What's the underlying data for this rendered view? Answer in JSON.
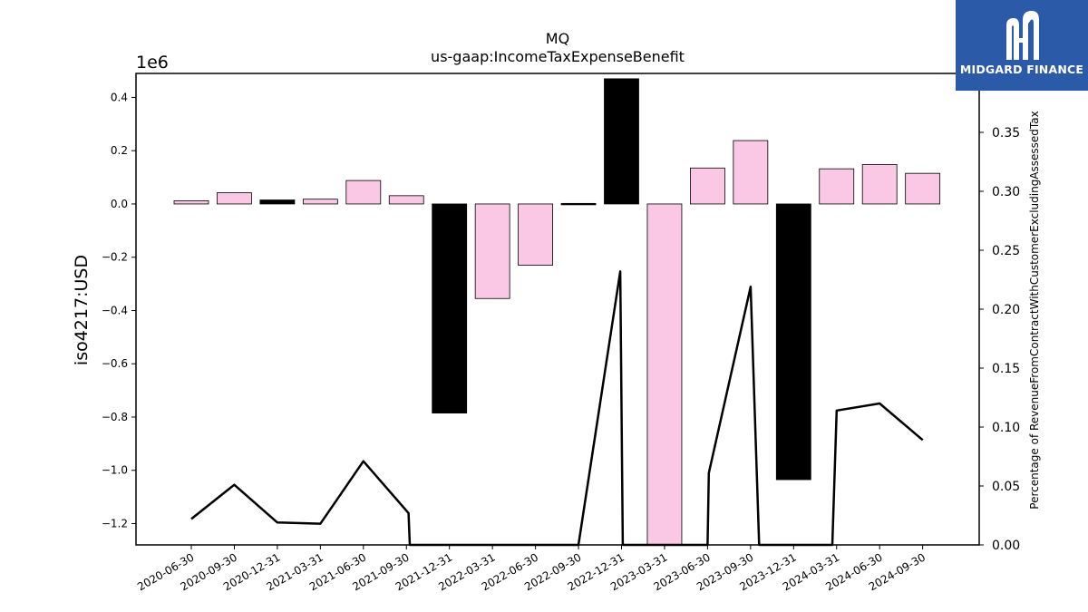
{
  "chart_data": {
    "type": "bar",
    "title": "MQ",
    "subtitle": "us-gaap:IncomeTaxExpenseBenefit",
    "ylabel": "iso4217:USD",
    "y_offset_label": "1e6",
    "y2label": "Percentage of RevenueFromContractWithCustomerExcludingAssessedTax",
    "ylim": [
      -1280000,
      490000
    ],
    "y2lim": [
      0,
      0.4
    ],
    "y_ticks": [
      0.4,
      0.2,
      0.0,
      -0.2,
      -0.4,
      -0.6,
      -0.8,
      -1.0,
      -1.2
    ],
    "y_tick_labels": [
      "0.4",
      "0.2",
      "0.0",
      "−0.2",
      "−0.4",
      "−0.6",
      "−0.8",
      "−1.0",
      "−1.2"
    ],
    "y2_ticks": [
      0.35,
      0.3,
      0.25,
      0.2,
      0.15,
      0.1,
      0.05,
      0.0
    ],
    "y2_tick_labels": [
      "0.35",
      "0.30",
      "0.25",
      "0.20",
      "0.15",
      "0.10",
      "0.05",
      "0.00"
    ],
    "categories": [
      "2020-06-30",
      "2020-09-30",
      "2020-12-31",
      "2021-03-31",
      "2021-06-30",
      "2021-09-30",
      "2021-12-31",
      "2022-03-31",
      "2022-06-30",
      "2022-09-30",
      "2022-12-31",
      "2023-03-31",
      "2023-06-30",
      "2023-09-30",
      "2023-12-31",
      "2024-03-31",
      "2024-06-30",
      "2024-09-30"
    ],
    "series": [
      {
        "type": "bar",
        "values": [
          12000,
          42000,
          15000,
          18000,
          88000,
          31000,
          -785000,
          -355000,
          -230000,
          2000,
          470000,
          -1290000,
          135000,
          238000,
          -1035000,
          132000,
          148000,
          115000
        ],
        "fill": [
          "#fac8e4",
          "#fac8e4",
          "#000000",
          "#fac8e4",
          "#fac8e4",
          "#fac8e4",
          "#000000",
          "#fac8e4",
          "#fac8e4",
          "#000000",
          "#000000",
          "#fac8e4",
          "#fac8e4",
          "#fac8e4",
          "#000000",
          "#fac8e4",
          "#fac8e4",
          "#fac8e4"
        ]
      },
      {
        "type": "line",
        "axis": "right",
        "color": "#000000",
        "x_index": [
          0,
          1,
          2,
          3,
          4,
          5.05,
          5.08,
          9.0,
          9.97,
          10.03,
          12.0,
          12.03,
          13.0,
          13.2,
          14.9,
          15.0,
          16.0,
          17.0
        ],
        "values": [
          0.022,
          0.051,
          0.019,
          0.018,
          0.071,
          0.027,
          0.0,
          0.0,
          0.232,
          0.0,
          0.0,
          0.061,
          0.219,
          0.0,
          0.0,
          0.114,
          0.12,
          0.089
        ]
      }
    ],
    "grid": false
  },
  "logo": {
    "text": "MIDGARD FINANCE",
    "bg": "#2b5ba8"
  }
}
